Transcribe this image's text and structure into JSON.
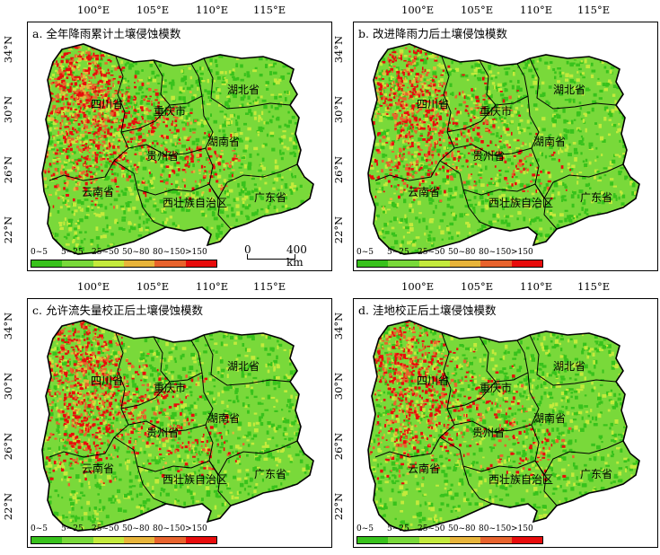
{
  "longitude_labels": [
    "100°E",
    "105°E",
    "110°E",
    "115°E"
  ],
  "latitude_labels": [
    "34°N",
    "30°N",
    "26°N",
    "22°N"
  ],
  "provinces": {
    "sichuan": "四川省",
    "chongqing": "重庆市",
    "hubei": "湖北省",
    "hunan": "湖南省",
    "guizhou": "贵州省",
    "yunnan": "云南省",
    "guangxi": "西壮族自治区",
    "guangdong": "广东省"
  },
  "legend": {
    "classes": [
      "0~5",
      "5~25",
      "25~50",
      "50~80",
      "80~150",
      ">150"
    ],
    "colors": [
      "#38c21c",
      "#79d93a",
      "#c4ea3c",
      "#e8b43a",
      "#e8632d",
      "#e80c0c"
    ]
  },
  "scale_bar": {
    "zero": "0",
    "distance": "400 km"
  },
  "panels": [
    {
      "title": "a. 全年降雨累计土壤侵蚀模数"
    },
    {
      "title": "b. 改进降雨力后土壤侵蚀模数"
    },
    {
      "title": "c. 允许流失量校正后土壤侵蚀模数"
    },
    {
      "title": "d. 洼地校正后土壤侵蚀模数"
    }
  ]
}
